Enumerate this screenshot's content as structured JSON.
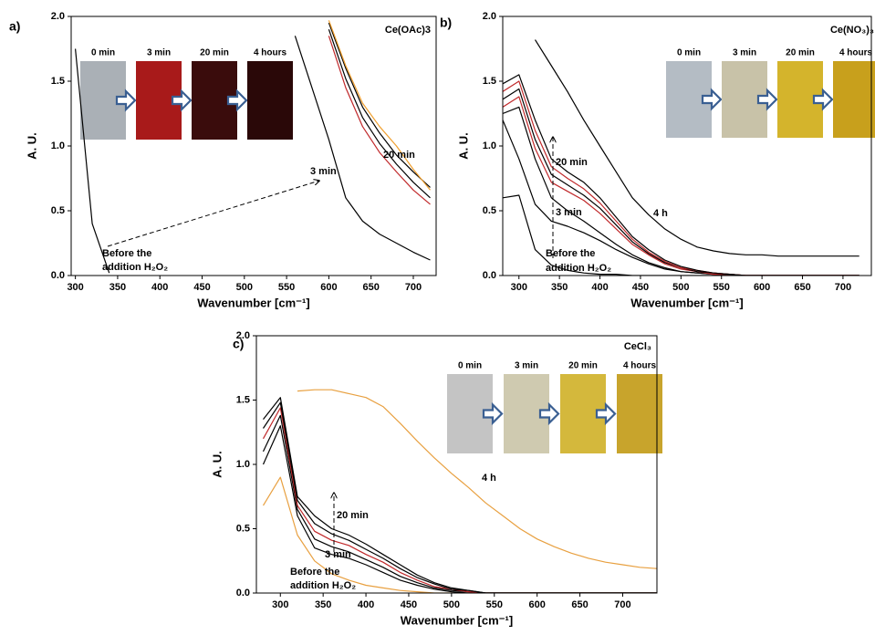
{
  "chart_data": [
    {
      "type": "line",
      "panel_label": "a)",
      "title": "Ce(OAc)3",
      "xlabel": "Wavenumber [cm⁻¹]",
      "ylabel": "A. U.",
      "xlim": [
        295,
        727
      ],
      "ylim": [
        0,
        2
      ],
      "xticks": [
        300,
        350,
        400,
        450,
        500,
        550,
        600,
        650,
        700
      ],
      "yticks": [
        {
          "value": 0,
          "label": "0.0"
        },
        {
          "value": 0.5,
          "label": "0.5"
        },
        {
          "value": 1,
          "label": "1.0"
        },
        {
          "value": 1.5,
          "label": "1.5"
        },
        {
          "value": 2,
          "label": "2.0"
        }
      ],
      "x": [
        300,
        320,
        340,
        360,
        380,
        400,
        420,
        440,
        460,
        480,
        500,
        520,
        540,
        560,
        580,
        600,
        620,
        640,
        660,
        680,
        700,
        720
      ],
      "series": [
        {
          "color": "#000000",
          "values": [
            1.75,
            0.4,
            0.02,
            null,
            null,
            null,
            null,
            null,
            null,
            null,
            null,
            null,
            null,
            null,
            null,
            null,
            null,
            null,
            null,
            null,
            null,
            null
          ]
        },
        {
          "color": "#000000",
          "values": [
            null,
            null,
            null,
            null,
            null,
            null,
            null,
            null,
            null,
            null,
            null,
            null,
            null,
            1.85,
            1.45,
            1.05,
            0.6,
            0.42,
            0.32,
            0.25,
            0.18,
            0.12
          ]
        },
        {
          "color": "#000000",
          "values": [
            null,
            null,
            null,
            null,
            null,
            null,
            null,
            null,
            null,
            null,
            null,
            null,
            null,
            null,
            null,
            1.95,
            1.6,
            1.3,
            1.1,
            0.93,
            0.8,
            0.68
          ]
        },
        {
          "color": "#000000",
          "values": [
            null,
            null,
            null,
            null,
            null,
            null,
            null,
            null,
            null,
            null,
            null,
            null,
            null,
            null,
            null,
            1.9,
            1.52,
            1.22,
            1.02,
            0.86,
            0.72,
            0.6
          ]
        },
        {
          "color": "#c0282a",
          "values": [
            null,
            null,
            null,
            null,
            null,
            null,
            null,
            null,
            null,
            null,
            null,
            null,
            null,
            null,
            null,
            1.85,
            1.45,
            1.15,
            0.95,
            0.8,
            0.66,
            0.55
          ]
        },
        {
          "color": "#f0a030",
          "values": [
            null,
            null,
            null,
            null,
            null,
            null,
            null,
            null,
            null,
            null,
            null,
            null,
            null,
            null,
            null,
            1.97,
            1.62,
            1.33,
            1.15,
            1.0,
            0.82,
            0.66
          ]
        }
      ],
      "annotations": [
        "3 min",
        "20 min",
        "Before the",
        "addition H₂O₂"
      ],
      "inset": {
        "labels": [
          "0 min",
          "3 min",
          "20 min",
          "4 hours"
        ],
        "colors": [
          "#aab0b6",
          "#a81a1a",
          "#3a0c0c",
          "#2a0808"
        ]
      }
    },
    {
      "type": "line",
      "panel_label": "b)",
      "title": "Ce(NO₃)₃",
      "xlabel": "Wavenumber [cm⁻¹]",
      "ylabel": "A. U.",
      "xlim": [
        280,
        735
      ],
      "ylim": [
        0,
        2
      ],
      "xticks": [
        300,
        350,
        400,
        450,
        500,
        550,
        600,
        650,
        700
      ],
      "yticks": [
        {
          "value": 0,
          "label": "0.0"
        },
        {
          "value": 0.5,
          "label": "0.5"
        },
        {
          "value": 1,
          "label": "1.0"
        },
        {
          "value": 1.5,
          "label": "1.5"
        },
        {
          "value": 2,
          "label": "2.0"
        }
      ],
      "x": [
        280,
        300,
        320,
        340,
        360,
        380,
        400,
        420,
        440,
        460,
        480,
        500,
        520,
        540,
        560,
        580,
        600,
        620,
        640,
        660,
        680,
        700,
        720
      ],
      "series": [
        {
          "color": "#000000",
          "values": [
            0.6,
            0.62,
            0.2,
            0.08,
            0.04,
            0.02,
            0.01,
            0.01,
            0,
            0,
            0,
            0,
            0,
            0,
            0,
            0,
            0,
            0,
            0,
            0,
            0,
            0,
            0
          ]
        },
        {
          "color": "#000000",
          "values": [
            1.2,
            0.9,
            0.55,
            0.42,
            0.38,
            0.33,
            0.27,
            0.2,
            0.14,
            0.09,
            0.05,
            0.03,
            0.02,
            0.01,
            0,
            0,
            0,
            0,
            0,
            0,
            0,
            0,
            0
          ]
        },
        {
          "color": "#000000",
          "values": [
            1.25,
            1.3,
            0.9,
            0.6,
            0.5,
            0.42,
            0.33,
            0.24,
            0.16,
            0.1,
            0.06,
            0.03,
            0.02,
            0.01,
            0,
            0,
            0,
            0,
            0,
            0,
            0,
            0,
            0
          ]
        },
        {
          "color": "#c0282a",
          "values": [
            1.3,
            1.38,
            0.98,
            0.72,
            0.65,
            0.58,
            0.48,
            0.36,
            0.24,
            0.16,
            0.09,
            0.05,
            0.03,
            0.01,
            0.01,
            0,
            0,
            0,
            0,
            0,
            0,
            0,
            0
          ]
        },
        {
          "color": "#000000",
          "values": [
            1.36,
            1.44,
            1.05,
            0.78,
            0.7,
            0.62,
            0.52,
            0.39,
            0.26,
            0.17,
            0.1,
            0.06,
            0.03,
            0.02,
            0.01,
            0,
            0,
            0,
            0,
            0,
            0,
            0,
            0
          ]
        },
        {
          "color": "#c0282a",
          "values": [
            1.42,
            1.5,
            1.12,
            0.84,
            0.75,
            0.67,
            0.56,
            0.42,
            0.28,
            0.18,
            0.11,
            0.06,
            0.04,
            0.02,
            0.01,
            0,
            0,
            0,
            0,
            0,
            0,
            0,
            0
          ]
        },
        {
          "color": "#000000",
          "values": [
            1.48,
            1.55,
            1.2,
            0.9,
            0.8,
            0.72,
            0.6,
            0.45,
            0.3,
            0.2,
            0.12,
            0.07,
            0.04,
            0.02,
            0.01,
            0,
            0,
            0,
            0,
            0,
            0,
            0,
            0
          ]
        },
        {
          "color": "#000000",
          "values": [
            null,
            null,
            1.82,
            1.62,
            1.42,
            1.2,
            1.0,
            0.8,
            0.6,
            0.47,
            0.36,
            0.28,
            0.22,
            0.19,
            0.17,
            0.16,
            0.16,
            0.15,
            0.15,
            0.15,
            0.15,
            0.15,
            0.15
          ]
        }
      ],
      "annotations": [
        "20 min",
        "3 min",
        "4 h",
        "Before the",
        "addition H₂O₂"
      ],
      "inset": {
        "labels": [
          "0 min",
          "3 min",
          "20 min",
          "4 hours"
        ],
        "colors": [
          "#b4bcc4",
          "#c8c2a8",
          "#d4b42c",
          "#c8a01c"
        ]
      }
    },
    {
      "type": "line",
      "panel_label": "c)",
      "title": "CeCl₃",
      "xlabel": "Wavenumber [cm⁻¹]",
      "ylabel": "A. U.",
      "xlim": [
        272,
        740
      ],
      "ylim": [
        0,
        2
      ],
      "xticks": [
        300,
        350,
        400,
        450,
        500,
        550,
        600,
        650,
        700
      ],
      "yticks": [
        {
          "value": 0,
          "label": "0.0"
        },
        {
          "value": 0.5,
          "label": "0.5"
        },
        {
          "value": 1,
          "label": "1.0"
        },
        {
          "value": 1.5,
          "label": "1.5"
        },
        {
          "value": 2,
          "label": "2.0"
        }
      ],
      "x": [
        280,
        300,
        320,
        340,
        360,
        380,
        400,
        420,
        440,
        460,
        480,
        500,
        520,
        540,
        560,
        580,
        600,
        620,
        640,
        660,
        680,
        700,
        720,
        740
      ],
      "series": [
        {
          "color": "#e8a040",
          "values": [
            0.68,
            0.9,
            0.45,
            0.25,
            0.15,
            0.1,
            0.06,
            0.04,
            0.02,
            0.01,
            0,
            0,
            0,
            0,
            0,
            0,
            0,
            0,
            0,
            0,
            0,
            0,
            0,
            0
          ]
        },
        {
          "color": "#000000",
          "values": [
            1.0,
            1.3,
            0.6,
            0.35,
            0.3,
            0.27,
            0.22,
            0.16,
            0.1,
            0.06,
            0.03,
            0.01,
            0,
            0,
            0,
            0,
            0,
            0,
            0,
            0,
            0,
            0,
            0,
            0
          ]
        },
        {
          "color": "#000000",
          "values": [
            1.1,
            1.38,
            0.65,
            0.42,
            0.36,
            0.32,
            0.26,
            0.2,
            0.13,
            0.08,
            0.04,
            0.02,
            0.01,
            0,
            0,
            0,
            0,
            0,
            0,
            0,
            0,
            0,
            0,
            0
          ]
        },
        {
          "color": "#c0282a",
          "values": [
            1.2,
            1.44,
            0.68,
            0.48,
            0.41,
            0.37,
            0.3,
            0.24,
            0.16,
            0.1,
            0.05,
            0.03,
            0.01,
            0,
            0,
            0,
            0,
            0,
            0,
            0,
            0,
            0,
            0,
            0
          ]
        },
        {
          "color": "#000000",
          "values": [
            1.28,
            1.48,
            0.72,
            0.54,
            0.46,
            0.41,
            0.34,
            0.27,
            0.19,
            0.12,
            0.07,
            0.03,
            0.02,
            0,
            0,
            0,
            0,
            0,
            0,
            0,
            0,
            0,
            0,
            0
          ]
        },
        {
          "color": "#000000",
          "values": [
            1.35,
            1.52,
            0.75,
            0.6,
            0.5,
            0.45,
            0.38,
            0.3,
            0.22,
            0.14,
            0.08,
            0.04,
            0.02,
            0,
            0,
            0,
            0,
            0,
            0,
            0,
            0,
            0,
            0,
            0
          ]
        },
        {
          "color": "#e8a040",
          "values": [
            null,
            null,
            1.57,
            1.58,
            1.58,
            1.55,
            1.52,
            1.45,
            1.32,
            1.18,
            1.05,
            0.93,
            0.82,
            0.7,
            0.6,
            0.5,
            0.42,
            0.36,
            0.31,
            0.27,
            0.24,
            0.22,
            0.2,
            0.19
          ]
        }
      ],
      "annotations": [
        "20 min",
        "3 min",
        "4 h",
        "Before the",
        "addition H₂O₂"
      ],
      "inset": {
        "labels": [
          "0 min",
          "3 min",
          "20 min",
          "4 hours"
        ],
        "colors": [
          "#c4c4c4",
          "#cfcab0",
          "#d4b83c",
          "#c8a42c"
        ]
      }
    }
  ]
}
